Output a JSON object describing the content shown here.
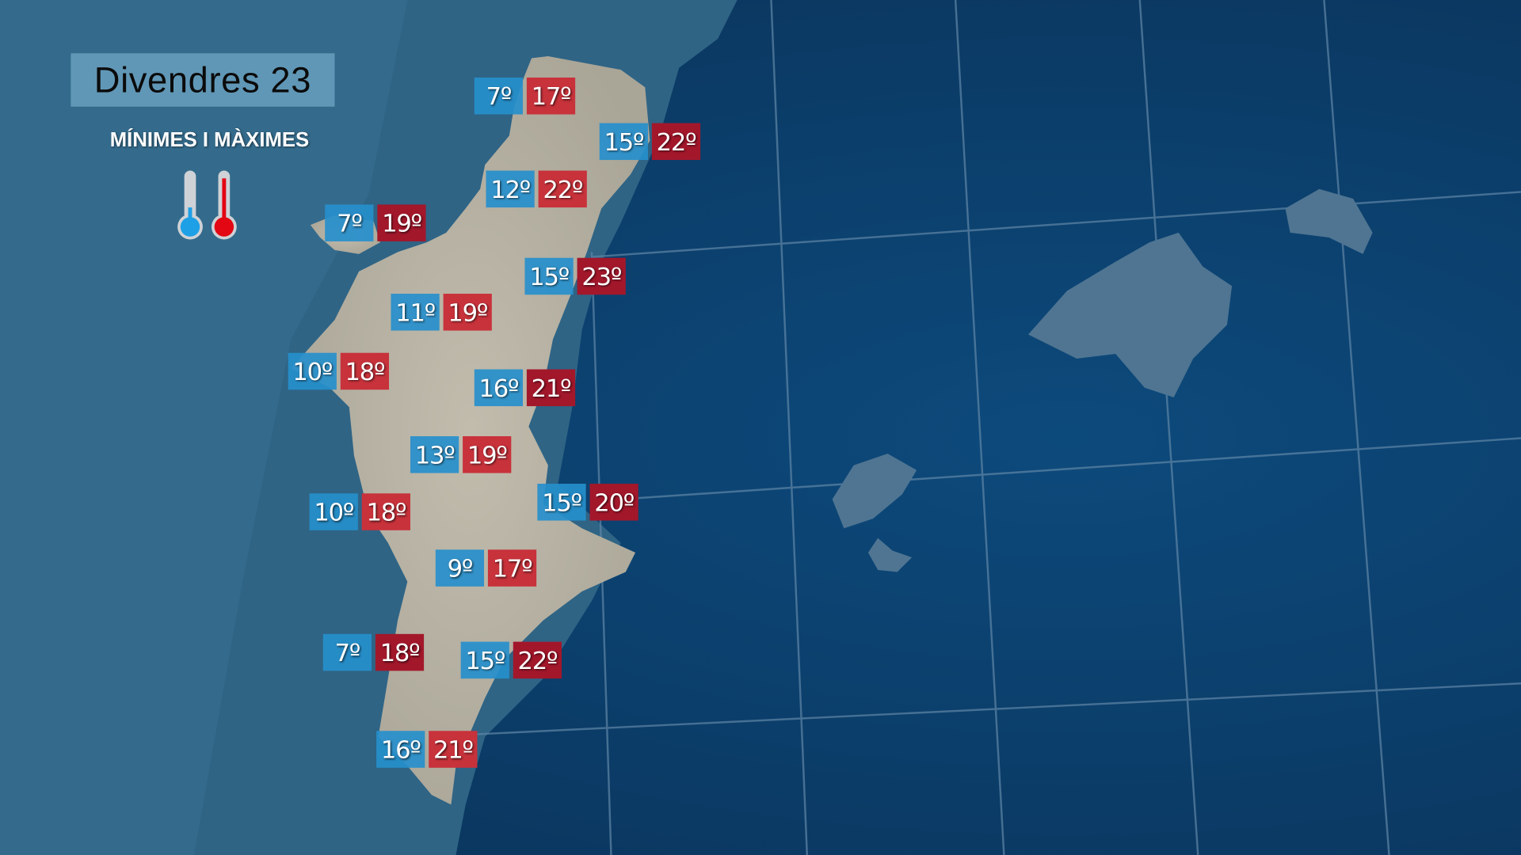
{
  "title": "Divendres 23",
  "subtitle": "MÍNIMES I MÀXIMES",
  "legend_icons": [
    "thermometer-cold-icon",
    "thermometer-hot-icon"
  ],
  "colors": {
    "min": "#268fcc",
    "max": "#c8323b",
    "max_dark": "#a3172b",
    "sea": "#0b3d69",
    "land": "#b9b4a6"
  },
  "stations": [
    {
      "min": "7º",
      "max": "17º",
      "dark": false
    },
    {
      "min": "15º",
      "max": "22º",
      "dark": true
    },
    {
      "min": "12º",
      "max": "22º",
      "dark": false
    },
    {
      "min": "7º",
      "max": "19º",
      "dark": true
    },
    {
      "min": "15º",
      "max": "23º",
      "dark": true
    },
    {
      "min": "11º",
      "max": "19º",
      "dark": false
    },
    {
      "min": "10º",
      "max": "18º",
      "dark": false
    },
    {
      "min": "16º",
      "max": "21º",
      "dark": true
    },
    {
      "min": "13º",
      "max": "19º",
      "dark": false
    },
    {
      "min": "10º",
      "max": "18º",
      "dark": false
    },
    {
      "min": "15º",
      "max": "20º",
      "dark": true
    },
    {
      "min": "9º",
      "max": "17º",
      "dark": false
    },
    {
      "min": "7º",
      "max": "18º",
      "dark": true
    },
    {
      "min": "15º",
      "max": "22º",
      "dark": true
    },
    {
      "min": "16º",
      "max": "21º",
      "dark": false
    }
  ]
}
